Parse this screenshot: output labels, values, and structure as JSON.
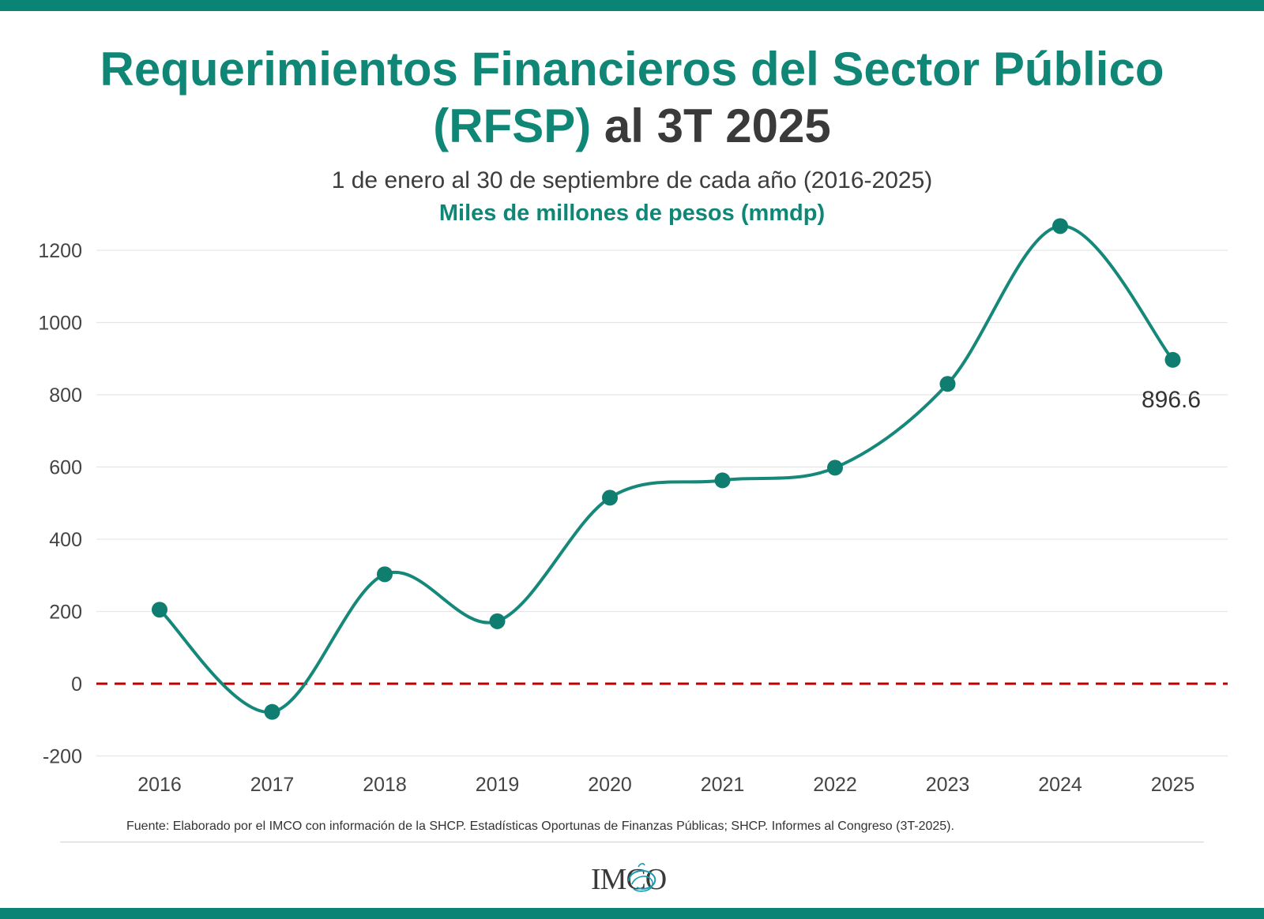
{
  "header": {
    "title_bold": "Requerimientos Financieros",
    "title_regular": " del Sector Público",
    "title_line2_regular": "(RFSP)",
    "title_line2_bold": " al 3T 2025",
    "subtitle": "1 de enero al 30 de septiembre de cada año (2016-2025)",
    "unit": "Miles de millones de pesos (mmdp)"
  },
  "chart_data": {
    "type": "line",
    "title": "Requerimientos Financieros del Sector Público (RFSP) al 3T 2025",
    "subtitle": "1 de enero al 30 de septiembre de cada año (2016-2025)",
    "ylabel": "Miles de millones de pesos (mmdp)",
    "xlabel": "",
    "categories": [
      "2016",
      "2017",
      "2018",
      "2019",
      "2020",
      "2021",
      "2022",
      "2023",
      "2024",
      "2025"
    ],
    "values": [
      205,
      -78,
      303,
      173,
      515,
      563,
      598,
      830,
      1267,
      896.6
    ],
    "ylim": [
      -200,
      1250
    ],
    "yticks": [
      -200,
      0,
      200,
      400,
      600,
      800,
      1000,
      1200
    ],
    "grid": true,
    "reference_line": {
      "value": 0,
      "style": "dashed",
      "color": "#c00000"
    },
    "annotations": [
      {
        "index": 9,
        "text": "896.6"
      }
    ],
    "line_color": "#16887a"
  },
  "footer": {
    "source": "Fuente: Elaborado por el IMCO con  información de la SHCP. Estadísticas Oportunas de Finanzas Públicas; SHCP. Informes al Congreso (3T-2025).",
    "logo_text": "IMCO"
  }
}
